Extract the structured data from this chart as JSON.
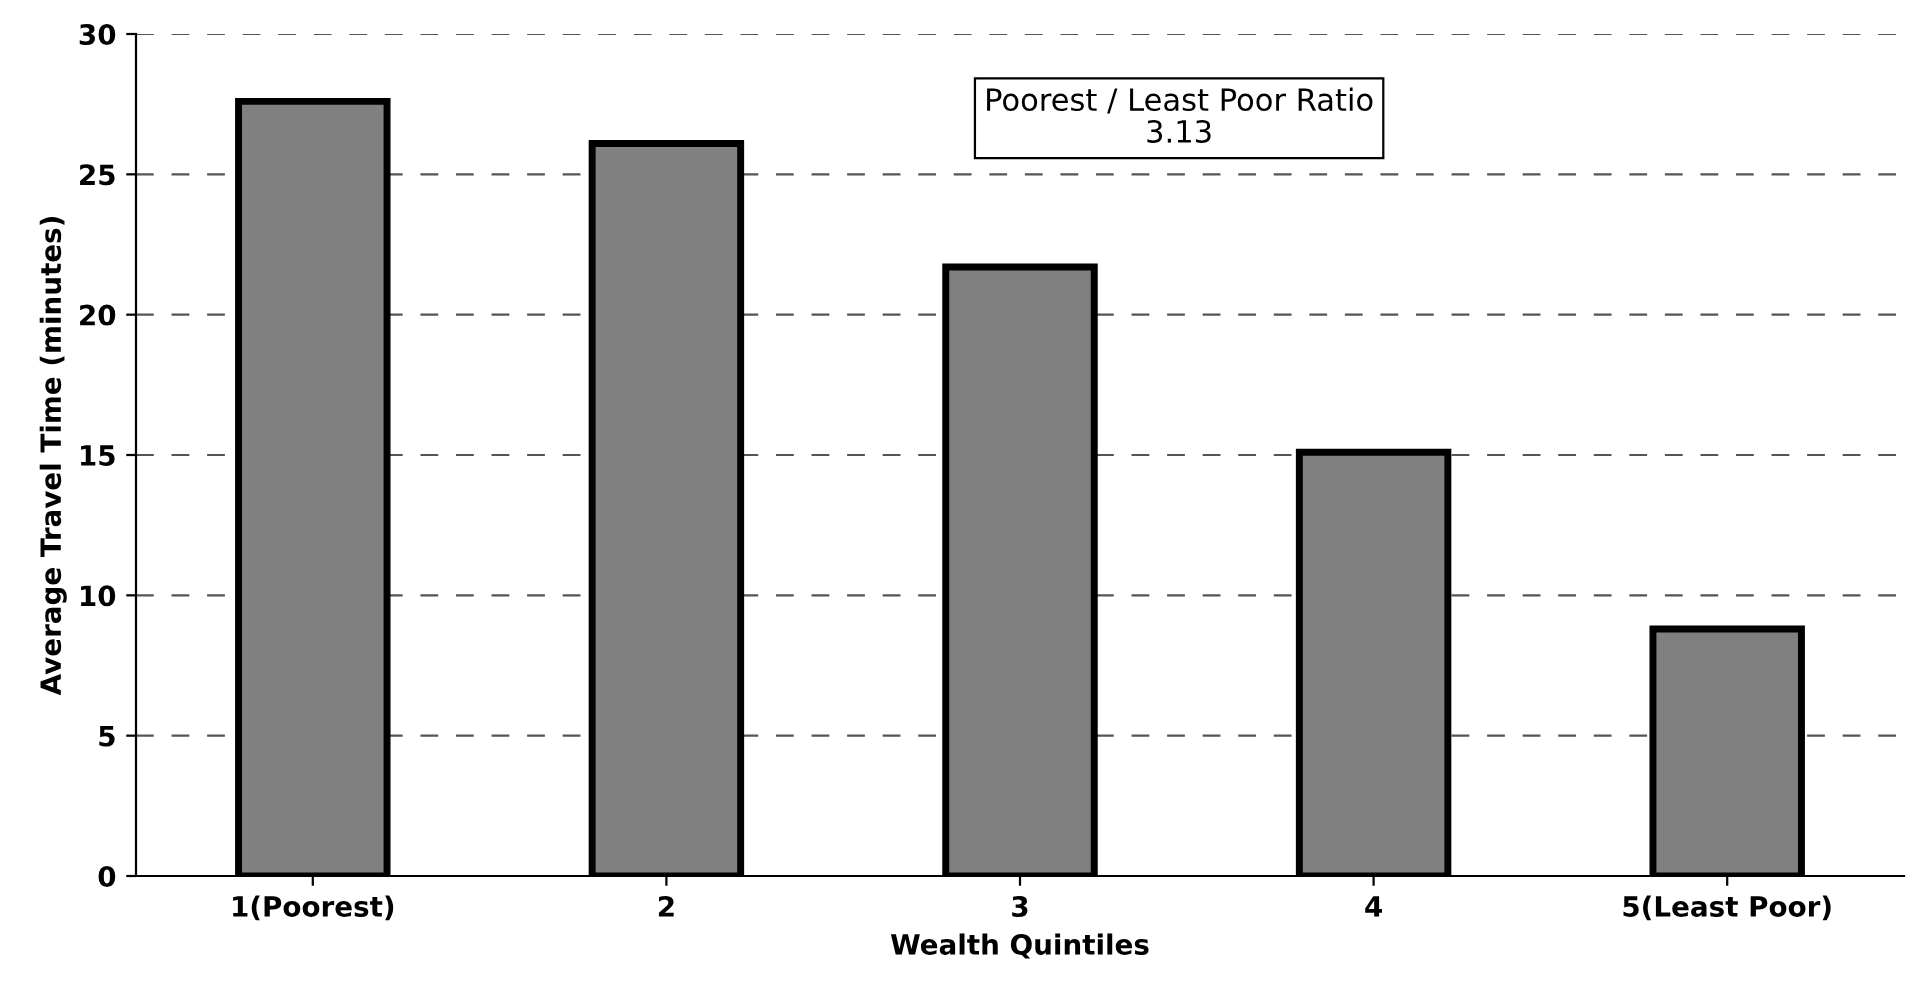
{
  "chart_data": {
    "type": "bar",
    "xlabel": "Wealth Quintiles",
    "ylabel": "Average Travel Time (minutes)",
    "categories": [
      "1(Poorest)",
      "2",
      "3",
      "4",
      "5(Least Poor)"
    ],
    "values": [
      27.6,
      26.1,
      21.7,
      15.1,
      8.8
    ],
    "color": "#808080",
    "ylim": [
      0,
      30
    ],
    "yticks": [
      0,
      5,
      10,
      15,
      20,
      25,
      30
    ],
    "grid": "y",
    "line_style": "dashed",
    "annotations": [
      "Poorest / Least Poor Ratio",
      "3.13"
    ]
  }
}
